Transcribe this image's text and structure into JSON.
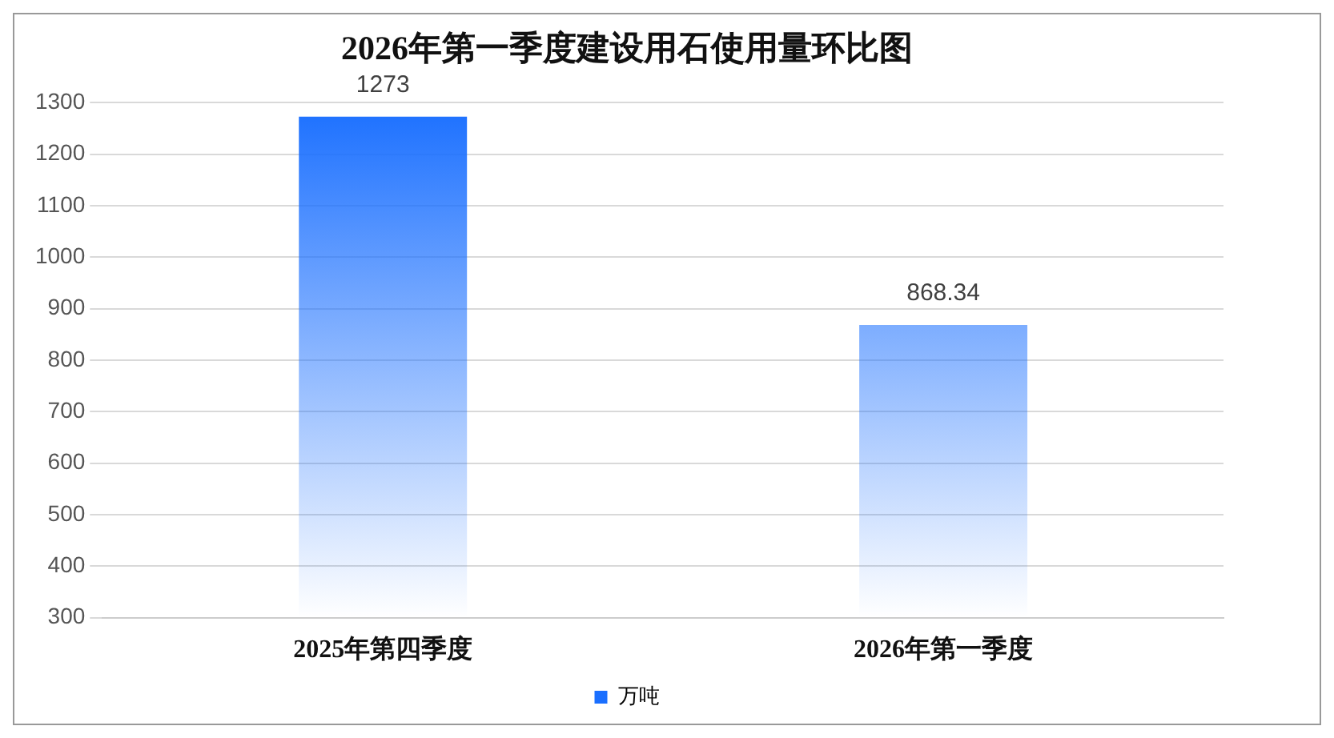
{
  "chart_data": {
    "type": "bar",
    "title": "2026年第一季度建设用石使用量环比图",
    "categories": [
      "2025年第四季度",
      "2026年第一季度"
    ],
    "series": [
      {
        "name": "万吨",
        "color": "#1a6fff",
        "values": [
          1273,
          868.34
        ]
      }
    ],
    "ylim": [
      300,
      1300
    ],
    "yticks": [
      300,
      400,
      500,
      600,
      700,
      800,
      900,
      1000,
      1100,
      1200,
      1300
    ],
    "grid": "y",
    "legend": "bottom",
    "data_labels": true
  }
}
